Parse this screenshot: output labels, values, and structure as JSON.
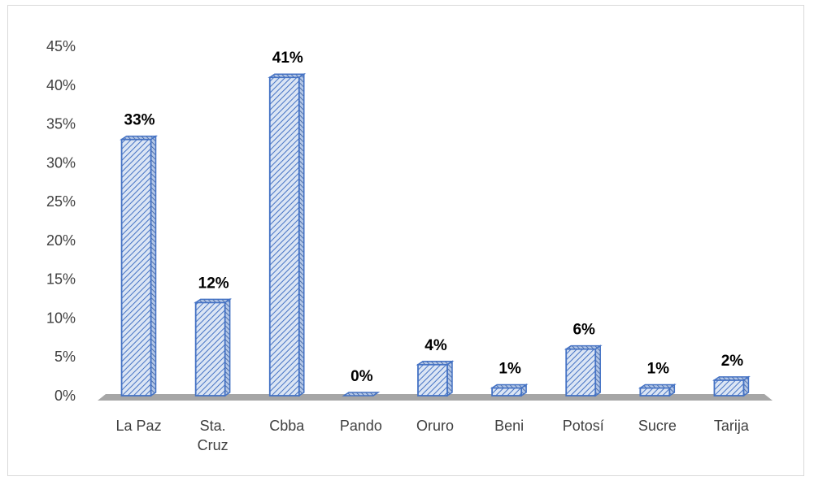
{
  "chart_data": {
    "type": "bar",
    "title": "",
    "xlabel": "",
    "ylabel": "",
    "categories": [
      [
        "La Paz"
      ],
      [
        "Sta.",
        "Cruz"
      ],
      [
        "Cbba"
      ],
      [
        "Pando"
      ],
      [
        "Oruro"
      ],
      [
        "Beni"
      ],
      [
        "Potosí"
      ],
      [
        "Sucre"
      ],
      [
        "Tarija"
      ]
    ],
    "values": [
      33,
      12,
      41,
      0,
      4,
      1,
      6,
      1,
      2
    ],
    "value_labels": [
      "33%",
      "12%",
      "41%",
      "0%",
      "4%",
      "1%",
      "6%",
      "1%",
      "2%"
    ],
    "ylim": [
      0,
      45
    ],
    "yticks": [
      0,
      5,
      10,
      15,
      20,
      25,
      30,
      35,
      40,
      45
    ],
    "ytick_labels": [
      "0%",
      "5%",
      "10%",
      "15%",
      "20%",
      "25%",
      "30%",
      "35%",
      "40%",
      "45%"
    ],
    "grid": false,
    "legend": "none",
    "colors": {
      "bar_fill": "#dbe5f4",
      "bar_hatch": "#4472c4",
      "bar_edge": "#4472c4",
      "floor": "#a6a6a6"
    }
  }
}
